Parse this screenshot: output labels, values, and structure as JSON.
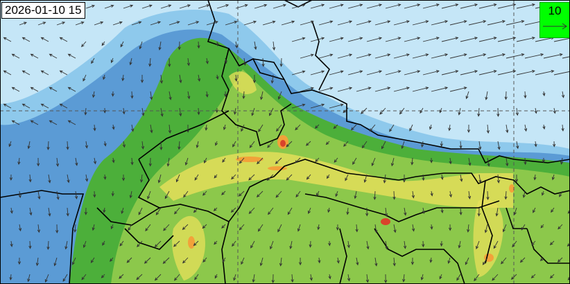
{
  "map": {
    "timestamp": "2026-01-10 15",
    "legend": {
      "reference_value": "10",
      "background_color": "#00ff00"
    },
    "colors": {
      "sea_low": "#c5e6f7",
      "band_light": "#8ec9ec",
      "band_mid": "#5b9bd5",
      "land_green": "#4caf3a",
      "land_light": "#8cc84b",
      "yellow": "#e8e05a",
      "orange": "#f2a23a",
      "red": "#d9432b"
    },
    "wind_arrows": true,
    "gridlines": "dashed"
  }
}
